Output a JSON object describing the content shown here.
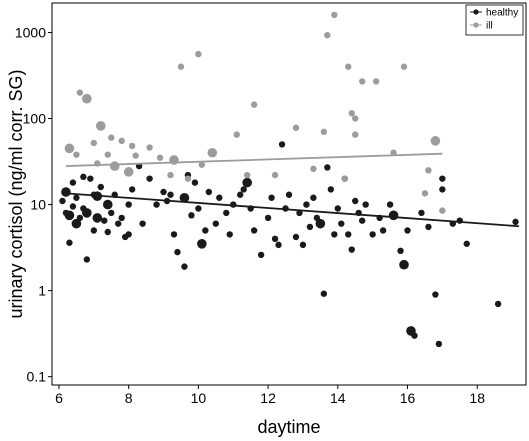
{
  "chart_data": {
    "type": "scatter",
    "title": "",
    "xlabel": "daytime",
    "ylabel": "urinary cortisol (ng/ml corr. SG)",
    "xlim": [
      5.8,
      19.4
    ],
    "ylim": [
      0.08,
      2200
    ],
    "y_scale": "log",
    "x_ticks": [
      6,
      8,
      10,
      12,
      14,
      16,
      18
    ],
    "x_tick_labels": [
      "6",
      "8",
      "10",
      "12",
      "14",
      "16",
      "18"
    ],
    "y_ticks": [
      0.1,
      1,
      10,
      100,
      1000
    ],
    "y_tick_labels": [
      "0.1",
      "1",
      "10",
      "100",
      "1000"
    ],
    "grid": false,
    "legend_position": "top-right",
    "series": [
      {
        "name": "healthy",
        "color": "#1a1a1a",
        "trend": {
          "x": [
            6.2,
            19.2
          ],
          "y": [
            13.5,
            5.6
          ]
        },
        "points": [
          [
            6.1,
            11.0,
            1
          ],
          [
            6.2,
            14.0,
            2
          ],
          [
            6.2,
            8.0,
            1
          ],
          [
            6.3,
            7.5,
            2
          ],
          [
            6.3,
            3.6,
            1
          ],
          [
            6.4,
            9.5,
            1
          ],
          [
            6.4,
            18.0,
            1
          ],
          [
            6.5,
            6.0,
            2
          ],
          [
            6.5,
            12.0,
            1
          ],
          [
            6.6,
            7.0,
            1
          ],
          [
            6.7,
            21.0,
            1
          ],
          [
            6.7,
            9.0,
            1
          ],
          [
            6.8,
            2.3,
            1
          ],
          [
            6.8,
            8.0,
            2
          ],
          [
            6.9,
            20.0,
            1
          ],
          [
            7.0,
            13.0,
            1
          ],
          [
            7.0,
            5.0,
            1
          ],
          [
            7.1,
            12.5,
            2
          ],
          [
            7.1,
            7.0,
            2
          ],
          [
            7.2,
            16.0,
            1
          ],
          [
            7.3,
            6.5,
            1
          ],
          [
            7.4,
            4.8,
            1
          ],
          [
            7.4,
            10.0,
            2
          ],
          [
            7.5,
            8.0,
            1
          ],
          [
            7.6,
            13.0,
            1
          ],
          [
            7.7,
            6.0,
            1
          ],
          [
            7.8,
            7.0,
            1
          ],
          [
            7.9,
            4.2,
            1
          ],
          [
            8.0,
            4.5,
            1
          ],
          [
            8.0,
            10.0,
            1
          ],
          [
            8.1,
            15.0,
            1
          ],
          [
            8.3,
            28.0,
            1
          ],
          [
            8.4,
            6.0,
            1
          ],
          [
            8.6,
            20.0,
            1
          ],
          [
            8.8,
            10.0,
            1
          ],
          [
            9.0,
            14.0,
            1
          ],
          [
            9.1,
            11.0,
            1
          ],
          [
            9.2,
            13.0,
            1
          ],
          [
            9.3,
            4.5,
            1
          ],
          [
            9.4,
            2.8,
            1
          ],
          [
            9.6,
            1.9,
            1
          ],
          [
            9.6,
            12.0,
            2
          ],
          [
            9.7,
            22.0,
            1
          ],
          [
            9.8,
            7.5,
            1
          ],
          [
            9.9,
            18.0,
            1
          ],
          [
            10.0,
            9.0,
            1
          ],
          [
            10.1,
            3.5,
            2
          ],
          [
            10.2,
            5.0,
            1
          ],
          [
            10.3,
            14.0,
            1
          ],
          [
            10.5,
            6.0,
            1
          ],
          [
            10.6,
            12.0,
            1
          ],
          [
            10.8,
            8.0,
            1
          ],
          [
            10.9,
            4.5,
            1
          ],
          [
            11.0,
            10.0,
            1
          ],
          [
            11.2,
            13.0,
            1
          ],
          [
            11.3,
            15.0,
            1
          ],
          [
            11.4,
            18.0,
            2
          ],
          [
            11.5,
            9.0,
            1
          ],
          [
            11.6,
            5.0,
            1
          ],
          [
            11.8,
            2.6,
            1
          ],
          [
            12.0,
            7.0,
            1
          ],
          [
            12.1,
            12.0,
            1
          ],
          [
            12.2,
            4.0,
            1
          ],
          [
            12.3,
            3.4,
            1
          ],
          [
            12.4,
            50.0,
            1
          ],
          [
            12.5,
            9.0,
            1
          ],
          [
            12.6,
            13.0,
            1
          ],
          [
            12.8,
            4.2,
            1
          ],
          [
            12.9,
            8.0,
            1
          ],
          [
            13.0,
            3.4,
            1
          ],
          [
            13.1,
            10.0,
            1
          ],
          [
            13.2,
            5.5,
            1
          ],
          [
            13.3,
            12.0,
            1
          ],
          [
            13.4,
            7.0,
            1
          ],
          [
            13.5,
            6.0,
            2
          ],
          [
            13.6,
            0.92,
            1
          ],
          [
            13.7,
            27.0,
            1
          ],
          [
            13.8,
            15.0,
            1
          ],
          [
            13.9,
            4.5,
            1
          ],
          [
            14.0,
            9.0,
            1
          ],
          [
            14.1,
            6.0,
            1
          ],
          [
            14.2,
            20.0,
            1
          ],
          [
            14.3,
            4.5,
            1
          ],
          [
            14.4,
            3.0,
            1
          ],
          [
            14.5,
            11.0,
            1
          ],
          [
            14.6,
            8.0,
            1
          ],
          [
            14.7,
            6.5,
            1
          ],
          [
            14.8,
            10.0,
            1
          ],
          [
            15.0,
            4.5,
            1
          ],
          [
            15.2,
            7.0,
            1
          ],
          [
            15.3,
            5.0,
            1
          ],
          [
            15.5,
            10.0,
            1
          ],
          [
            15.6,
            7.5,
            2
          ],
          [
            15.8,
            2.9,
            1
          ],
          [
            15.9,
            2.0,
            2
          ],
          [
            16.0,
            5.0,
            1
          ],
          [
            16.1,
            0.34,
            2
          ],
          [
            16.2,
            0.3,
            1
          ],
          [
            16.4,
            8.0,
            1
          ],
          [
            16.6,
            5.5,
            1
          ],
          [
            16.8,
            0.9,
            1
          ],
          [
            16.9,
            0.24,
            1
          ],
          [
            17.0,
            15.0,
            1
          ],
          [
            17.0,
            20.0,
            1
          ],
          [
            17.3,
            6.0,
            1
          ],
          [
            17.5,
            6.5,
            1
          ],
          [
            17.7,
            3.5,
            1
          ],
          [
            18.6,
            0.7,
            1
          ],
          [
            19.1,
            6.3,
            1
          ]
        ]
      },
      {
        "name": "ill",
        "color": "#9c9c9c",
        "trend": {
          "x": [
            6.2,
            17.0
          ],
          "y": [
            28.0,
            39.0
          ]
        },
        "points": [
          [
            6.3,
            45.0,
            2
          ],
          [
            6.5,
            38.0,
            1
          ],
          [
            6.6,
            200.0,
            1
          ],
          [
            6.8,
            170.0,
            2
          ],
          [
            7.0,
            52.0,
            1
          ],
          [
            7.1,
            30.0,
            1
          ],
          [
            7.2,
            82.0,
            2
          ],
          [
            7.4,
            38.0,
            1
          ],
          [
            7.5,
            60.0,
            1
          ],
          [
            7.6,
            28.0,
            2
          ],
          [
            7.8,
            55.0,
            1
          ],
          [
            8.0,
            24.0,
            2
          ],
          [
            8.1,
            48.0,
            1
          ],
          [
            8.2,
            37.0,
            1
          ],
          [
            8.6,
            46.0,
            1
          ],
          [
            8.9,
            35.0,
            1
          ],
          [
            9.2,
            22.0,
            1
          ],
          [
            9.3,
            33.0,
            2
          ],
          [
            9.5,
            400.0,
            1
          ],
          [
            9.7,
            20.0,
            1
          ],
          [
            10.0,
            560.0,
            1
          ],
          [
            10.1,
            29.0,
            1
          ],
          [
            10.4,
            40.0,
            2
          ],
          [
            11.1,
            65.0,
            1
          ],
          [
            11.4,
            22.0,
            1
          ],
          [
            11.6,
            145.0,
            1
          ],
          [
            12.2,
            22.0,
            1
          ],
          [
            12.8,
            78.0,
            1
          ],
          [
            13.3,
            26.0,
            1
          ],
          [
            13.6,
            70.0,
            1
          ],
          [
            13.7,
            930.0,
            1
          ],
          [
            13.9,
            1600.0,
            1
          ],
          [
            14.2,
            20.0,
            1
          ],
          [
            14.3,
            400.0,
            1
          ],
          [
            14.4,
            115.0,
            1
          ],
          [
            14.5,
            100.0,
            1
          ],
          [
            14.5,
            65.0,
            1
          ],
          [
            14.7,
            270.0,
            1
          ],
          [
            15.1,
            270.0,
            1
          ],
          [
            15.6,
            40.0,
            1
          ],
          [
            15.9,
            400.0,
            1
          ],
          [
            16.5,
            13.5,
            1
          ],
          [
            16.6,
            25.0,
            1
          ],
          [
            16.8,
            55.0,
            2
          ],
          [
            17.0,
            8.5,
            1
          ]
        ]
      }
    ]
  }
}
